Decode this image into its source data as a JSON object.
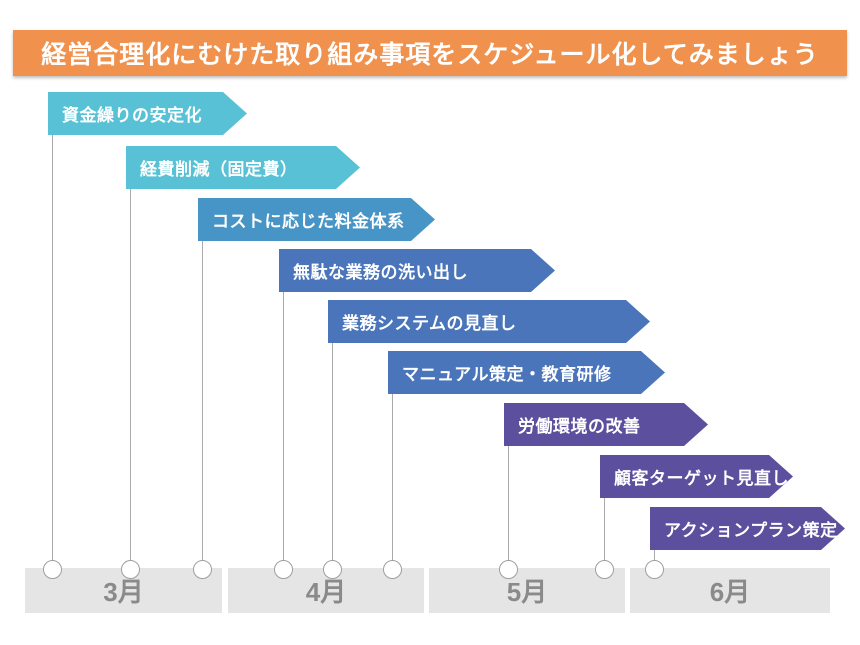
{
  "header": {
    "title": "経営合理化にむけた取り組み事項をスケジュール化してみましょう",
    "bg_color": "#F0924D",
    "text_color": "#FFFFFF"
  },
  "banners": [
    {
      "label": "資金繰りの安定化",
      "color": "#58C1D5",
      "group": "cyan"
    },
    {
      "label": "経費削減（固定費）",
      "color": "#58C1D5",
      "group": "cyan"
    },
    {
      "label": "コストに応じた料金体系",
      "color": "#4695C6",
      "group": "steel-blue"
    },
    {
      "label": "無駄な業務の洗い出し",
      "color": "#4A75BA",
      "group": "royal-blue"
    },
    {
      "label": "業務システムの見直し",
      "color": "#4A75BA",
      "group": "royal-blue"
    },
    {
      "label": "マニュアル策定・教育研修",
      "color": "#4A75BA",
      "group": "royal-blue"
    },
    {
      "label": "労働環境の改善",
      "color": "#5B4F9E",
      "group": "purple"
    },
    {
      "label": "顧客ターゲット見直し",
      "color": "#5B4F9E",
      "group": "purple"
    },
    {
      "label": "アクションプラン策定",
      "color": "#5B4F9E",
      "group": "purple"
    }
  ],
  "timeline": {
    "months": [
      {
        "label": "3月"
      },
      {
        "label": "4月"
      },
      {
        "label": "5月"
      },
      {
        "label": "6月"
      }
    ],
    "box_color": "#E6E5E5",
    "label_color": "#8A8A8A",
    "connector_color": "#ABABAB"
  }
}
